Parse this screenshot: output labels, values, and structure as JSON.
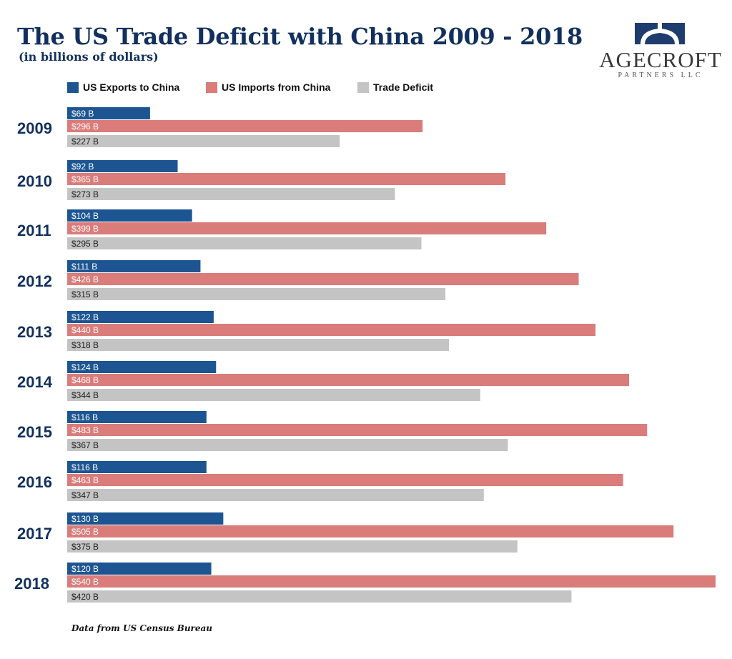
{
  "header": {
    "title": "The US Trade Deficit with China 2009 - 2018",
    "subtitle": "(in billions of dollars)"
  },
  "logo": {
    "name": "AGECROFT",
    "subtitle": "PARTNERS LLC"
  },
  "colors": {
    "exports": "#1c5592",
    "imports": "#d97c7a",
    "deficit": "#c4c4c4",
    "title": "#12305e"
  },
  "footer": {
    "source": "Data from US Census Bureau"
  },
  "chart_data": {
    "type": "bar",
    "orientation": "horizontal",
    "title": "The US Trade Deficit with China 2009 - 2018",
    "subtitle": "(in billions of dollars)",
    "categories": [
      "2009",
      "2010",
      "2011",
      "2012",
      "2013",
      "2014",
      "2015",
      "2016",
      "2017",
      "2018"
    ],
    "series": [
      {
        "name": "US Exports to China",
        "values": [
          69,
          92,
          104,
          111,
          122,
          124,
          116,
          116,
          130,
          120
        ],
        "labels": [
          "$69 B",
          "$92 B",
          "$104 B",
          "$111 B",
          "$122 B",
          "$124 B",
          "$116 B",
          "$116 B",
          "$130 B",
          "$120 B"
        ]
      },
      {
        "name": "US Imports from China",
        "values": [
          296,
          365,
          399,
          426,
          440,
          468,
          483,
          463,
          505,
          540
        ],
        "labels": [
          "$296 B",
          "$365 B",
          "$399 B",
          "$426 B",
          "$440 B",
          "$468 B",
          "$483 B",
          "$463 B",
          "$505 B",
          "$540 B"
        ]
      },
      {
        "name": "Trade Deficit",
        "values": [
          227,
          273,
          295,
          315,
          318,
          344,
          367,
          347,
          375,
          420
        ],
        "labels": [
          "$227 B",
          "$273 B",
          "$295 B",
          "$315 B",
          "$318 B",
          "$344 B",
          "$367 B",
          "$347 B",
          "$375 B",
          "$420 B"
        ]
      }
    ],
    "xlim": [
      0,
      540
    ],
    "legend": "top",
    "grid": false
  }
}
